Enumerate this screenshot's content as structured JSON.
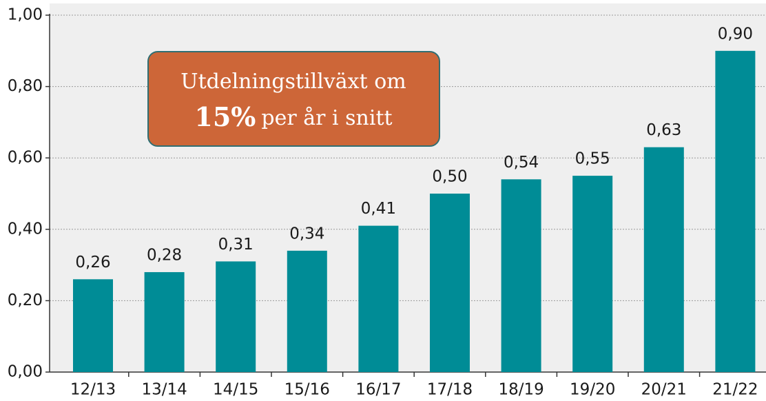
{
  "chart_data": {
    "type": "bar",
    "categories": [
      "12/13",
      "13/14",
      "14/15",
      "15/16",
      "16/17",
      "17/18",
      "18/19",
      "19/20",
      "20/21",
      "21/22"
    ],
    "values": [
      0.26,
      0.28,
      0.31,
      0.34,
      0.41,
      0.5,
      0.54,
      0.55,
      0.63,
      0.9
    ],
    "value_labels": [
      "0,26",
      "0,28",
      "0,31",
      "0,34",
      "0,41",
      "0,50",
      "0,54",
      "0,55",
      "0,63",
      "0,90"
    ],
    "color": "#008c96",
    "ylim": [
      0,
      1
    ],
    "yticks": [
      {
        "value": 0,
        "label": "0,00"
      },
      {
        "value": 0.2,
        "label": "0,20"
      },
      {
        "value": 0.4,
        "label": "0,40"
      },
      {
        "value": 0.6,
        "label": "0,60"
      },
      {
        "value": 0.8,
        "label": "0,80"
      },
      {
        "value": 1,
        "label": "1,00"
      }
    ],
    "grid": true,
    "annotation": {
      "line1": "Utdelningstillväxt om",
      "highlight": "15%",
      "rest": "per år i snitt"
    }
  }
}
